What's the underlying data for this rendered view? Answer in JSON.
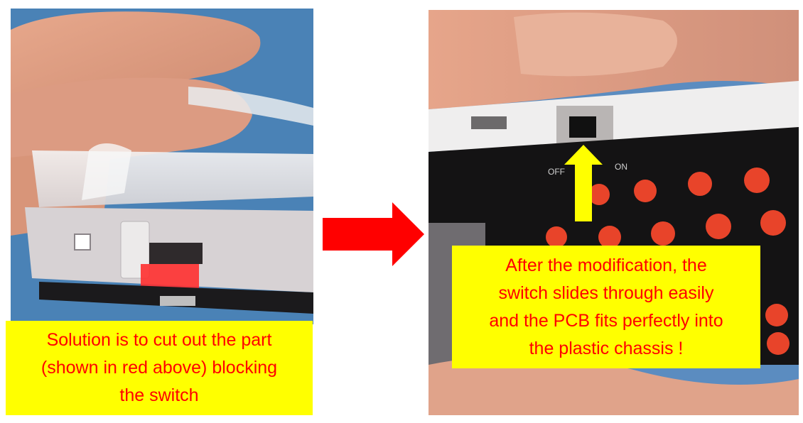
{
  "photos": [
    {
      "name": "photo-before-modification",
      "description_icon": "photo-icon"
    },
    {
      "name": "photo-after-modification",
      "description_icon": "photo-icon"
    }
  ],
  "captions": {
    "left": {
      "lines": [
        "Solution is to cut out the part",
        "(shown in red above) blocking",
        "the switch"
      ]
    },
    "right": {
      "lines": [
        "After the modification, the",
        "switch slides through easily",
        "and the PCB fits perfectly into",
        "the plastic chassis !"
      ]
    }
  },
  "labels": {
    "off": "OFF",
    "on": "ON"
  },
  "colors": {
    "caption_bg": "#ffff00",
    "caption_text": "#ff0000",
    "arrow_red": "#ff0000",
    "arrow_yellow": "#ffff00",
    "highlight_red": "#ff3030"
  }
}
